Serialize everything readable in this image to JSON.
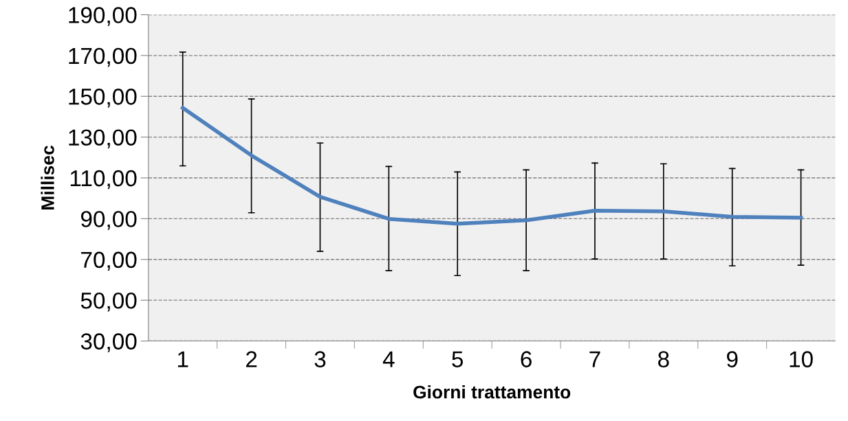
{
  "chart_data": {
    "type": "line",
    "xlabel": "Giorni trattamento",
    "ylabel": "Millisec",
    "categories": [
      "1",
      "2",
      "3",
      "4",
      "5",
      "6",
      "7",
      "8",
      "9",
      "10"
    ],
    "series": [
      {
        "color": "#4f81bd",
        "values": [
          144.3,
          121.0,
          100.7,
          89.9,
          87.5,
          89.2,
          93.9,
          93.6,
          90.9,
          90.5
        ],
        "errors": [
          [
            115.9,
            171.7
          ],
          [
            92.9,
            148.7
          ],
          [
            74.0,
            127.1
          ],
          [
            64.5,
            115.6
          ],
          [
            62.1,
            112.9
          ],
          [
            64.5,
            113.9
          ],
          [
            70.2,
            117.3
          ],
          [
            70.2,
            116.9
          ],
          [
            66.9,
            114.6
          ],
          [
            67.2,
            113.9
          ]
        ]
      }
    ],
    "ylim": [
      30,
      190
    ],
    "yticks": [
      {
        "value": 30,
        "label": "30,00"
      },
      {
        "value": 50,
        "label": "50,00"
      },
      {
        "value": 70,
        "label": "70,00"
      },
      {
        "value": 90,
        "label": "90,00"
      },
      {
        "value": 110,
        "label": "110,00"
      },
      {
        "value": 130,
        "label": "130,00"
      },
      {
        "value": 150,
        "label": "150,00"
      },
      {
        "value": 170,
        "label": "170,00"
      },
      {
        "value": 190,
        "label": "190,00"
      }
    ],
    "grid": "y",
    "marker": "none",
    "line_style": "solid"
  }
}
